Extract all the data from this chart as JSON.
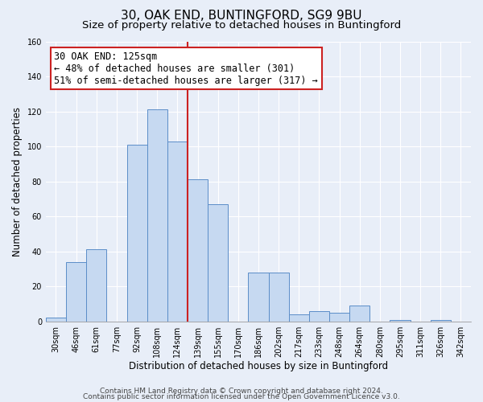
{
  "title": "30, OAK END, BUNTINGFORD, SG9 9BU",
  "subtitle": "Size of property relative to detached houses in Buntingford",
  "xlabel": "Distribution of detached houses by size in Buntingford",
  "ylabel": "Number of detached properties",
  "bar_labels": [
    "30sqm",
    "46sqm",
    "61sqm",
    "77sqm",
    "92sqm",
    "108sqm",
    "124sqm",
    "139sqm",
    "155sqm",
    "170sqm",
    "186sqm",
    "202sqm",
    "217sqm",
    "233sqm",
    "248sqm",
    "264sqm",
    "280sqm",
    "295sqm",
    "311sqm",
    "326sqm",
    "342sqm"
  ],
  "bar_values": [
    2,
    34,
    41,
    0,
    101,
    121,
    103,
    81,
    67,
    0,
    28,
    28,
    4,
    6,
    5,
    9,
    0,
    1,
    0,
    1,
    0
  ],
  "bar_color": "#c6d9f1",
  "bar_edge_color": "#5b8dc8",
  "vline_x": 6.5,
  "annotation_title": "30 OAK END: 125sqm",
  "annotation_line1": "← 48% of detached houses are smaller (301)",
  "annotation_line2": "51% of semi-detached houses are larger (317) →",
  "annotation_box_color": "#ffffff",
  "annotation_box_edge": "#cc2222",
  "vline_color": "#cc2222",
  "ylim": [
    0,
    160
  ],
  "footer1": "Contains HM Land Registry data © Crown copyright and database right 2024.",
  "footer2": "Contains public sector information licensed under the Open Government Licence v3.0.",
  "background_color": "#e8eef8",
  "plot_background": "#e8eef8",
  "title_fontsize": 11,
  "subtitle_fontsize": 9.5,
  "xlabel_fontsize": 8.5,
  "ylabel_fontsize": 8.5,
  "tick_fontsize": 7,
  "footer_fontsize": 6.5,
  "ann_fontsize": 8.5
}
